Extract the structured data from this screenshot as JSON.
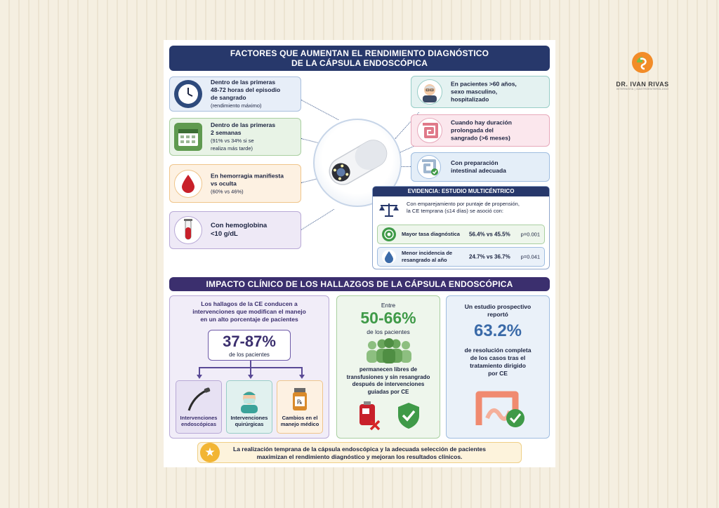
{
  "title_line1": "FACTORES QUE AUMENTAN EL RENDIMIENTO DIAGNÓSTICO",
  "title_line2": "DE LA CÁPSULA ENDOSCÓPICA",
  "logo": {
    "name": "DR. IVAN RIVAS",
    "subtitle": "INTERNISTA | GASTROENTERÓLOGO"
  },
  "factors_left": [
    {
      "line1": "Dentro de las primeras",
      "line2": "48-72 horas del episodio",
      "line3": "de sangrado",
      "note": "(rendimiento máximo)",
      "icon": "clock-icon"
    },
    {
      "line1": "Dentro de las primeras",
      "line2": "2 semanas",
      "note1": "(91% vs 34% si se",
      "note2": "realiza más tarde)",
      "icon": "calendar-icon"
    },
    {
      "line1": "En hemorragia manifiesta",
      "line2": "vs oculta",
      "note": "(60% vs 46%)",
      "icon": "blood-drop-icon"
    },
    {
      "line1": "Con hemoglobina",
      "line2": "<10 g/dL",
      "icon": "test-tube-icon"
    }
  ],
  "factors_right": [
    {
      "line1": "En pacientes >60 años,",
      "line2": "sexo masculino,",
      "line3": "hospitalizado",
      "icon": "elderly-man-icon"
    },
    {
      "line1": "Cuando hay duración",
      "line2": "prolongada del",
      "line3": "sangrado (>6 meses)",
      "icon": "intestine-icon"
    },
    {
      "line1": "Con preparación",
      "line2": "intestinal adecuada",
      "icon": "intestine-check-icon"
    }
  ],
  "evidence": {
    "heading": "EVIDENCIA: ESTUDIO MULTICÉNTRICO",
    "desc1": "Con emparejamiento por puntaje de propensión,",
    "desc2": "la CE temprana (≤14 días) se asoció con:",
    "rows": [
      {
        "label1": "Mayor tasa diagnóstica",
        "label2": "",
        "value": "56.4% vs 45.5%",
        "p": "p=0.001"
      },
      {
        "label1": "Menor incidencia de",
        "label2": "resangrado al año",
        "value": "24.7% vs 36.7%",
        "p": "p=0.041"
      }
    ]
  },
  "impact_title": "IMPACTO CLÍNICO DE LOS HALLAZGOS DE LA CÁPSULA ENDOSCÓPICA",
  "panel1": {
    "text1": "Los hallagos de la CE conducen a",
    "text2": "intervenciones que modifican el manejo",
    "text3": "en un alto porcentaje de pacientes",
    "range": "37-87%",
    "range_sub": "de los pacientes",
    "items": [
      {
        "l1": "Intervenciones",
        "l2": "endoscópicas",
        "icon": "endoscope-icon"
      },
      {
        "l1": "Intervenciones",
        "l2": "quirúrgicas",
        "icon": "surgeon-icon"
      },
      {
        "l1": "Cambios en el",
        "l2": "manejo médico",
        "icon": "medicine-bottle-icon"
      }
    ]
  },
  "panel2": {
    "pre": "Entre",
    "range": "50-66%",
    "sub": "de los pacientes",
    "t1": "permanecen libres de",
    "t2": "transfusiones y sin resangrado",
    "t3": "después de intervenciones",
    "t4": "guiadas por CE"
  },
  "panel3": {
    "t1": "Un estudio prospectivo",
    "t2": "reportó",
    "value": "63.2%",
    "d1": "de resolución completa",
    "d2": "de los casos tras el",
    "d3": "tratamiento dirigido",
    "d4": "por CE"
  },
  "footer": {
    "line1": "La realización temprana de la cápsula endoscópica y la adecuada selección de pacientes",
    "line2": "maximizan el rendimiento diagnóstico y mejoran los resultados clínicos."
  }
}
